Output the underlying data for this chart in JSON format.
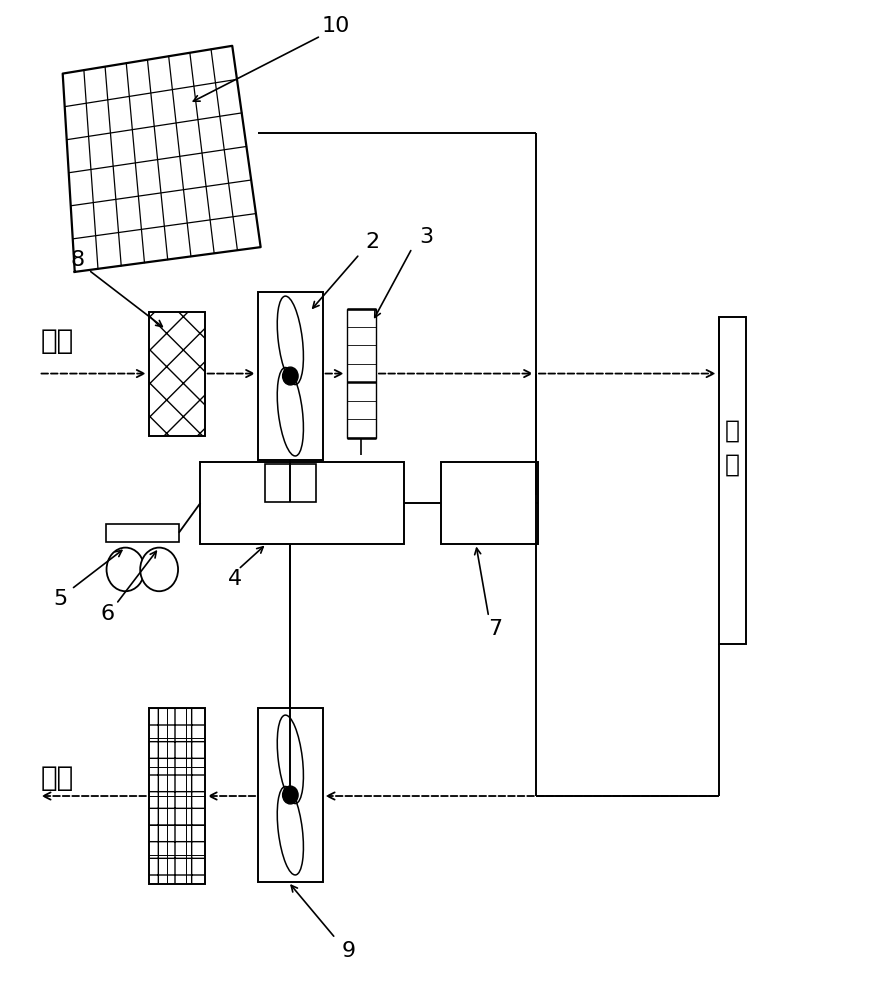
{
  "bg": "#ffffff",
  "lc": "#000000",
  "labels": {
    "solar": "10",
    "filter_in": "8",
    "fan_in": "2",
    "heater": "3",
    "ctrl": "4",
    "sensor1": "5",
    "sensor2": "6",
    "box7": "7",
    "fan_ex": "9"
  },
  "jinfeng": "进风",
  "paifeng": "排风",
  "kOubi": "口\n鼻",
  "fs_num": 14,
  "fs_cn": 20
}
